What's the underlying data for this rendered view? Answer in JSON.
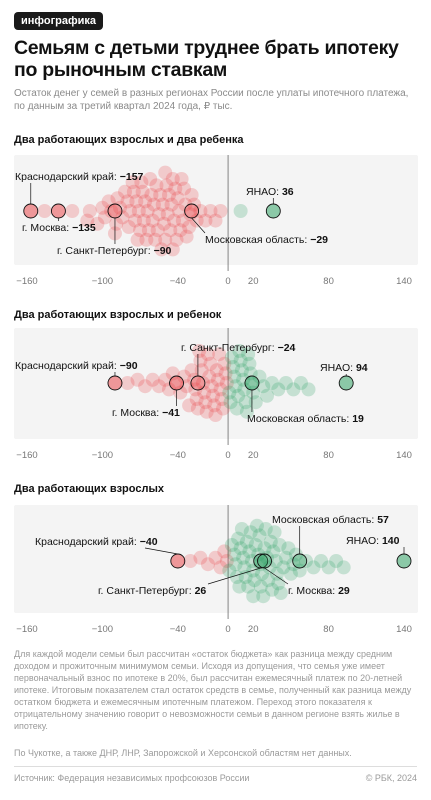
{
  "badge": "инфографика",
  "title": "Семьям с детьми труднее брать ипотеку по рыночным ставкам",
  "subtitle": "Остаток денег у семей в разных регионах России после уплаты ипотечного платежа, по данным за третий квартал 2024 года, ₽ тыс.",
  "note": "Для каждой модели семьи был рассчитан «остаток бюджета» как разница между средним доходом и прожиточным минимумом семьи. Исходя из допущения, что семья уже имеет первоначальный взнос по ипотеке в 20%, был рассчитан ежемесячный платеж по 20-летней ипотеке. Итоговым показателем стал остаток средств в семье, полученный как разница между остатком бюджета и ежемесячным ипотечным платежом. Переход этого показателя к отрицательному значению говорит о невозможности семьи в данном регионе взять жилье в ипотеку.",
  "note2": "По Чукотке, а также ДНР, ЛНР, Запорожской и Херсонской областям нет данных.",
  "source": "Источник: Федерация независимых профсоюзов России",
  "copyright": "© РБК, 2024",
  "colors": {
    "negative": "#e8383d",
    "positive": "#1f9a5a"
  },
  "chart_data": [
    {
      "type": "scatter",
      "title": "Два работающих взрослых и два ребенка",
      "xlim": [
        -160,
        140
      ],
      "ticks": [
        "−160",
        "−100",
        "−40",
        "0",
        "20",
        "80",
        "140"
      ],
      "tick_values": [
        -160,
        -100,
        -40,
        0,
        20,
        80,
        140
      ],
      "values": [
        -157,
        -146,
        -135,
        -124,
        -112,
        -110,
        -104,
        -100,
        -98,
        -95,
        -93,
        -90,
        -89,
        -88,
        -86,
        -84,
        -82,
        -80,
        -79,
        -78,
        -76,
        -75,
        -74,
        -73,
        -72,
        -71,
        -70,
        -69,
        -68,
        -67,
        -66,
        -65,
        -64,
        -63,
        -62,
        -61,
        -60,
        -59,
        -58,
        -57,
        -56,
        -55,
        -54,
        -53,
        -52,
        -51,
        -50,
        -50,
        -49,
        -48,
        -47,
        -46,
        -45,
        -44,
        -44,
        -43,
        -42,
        -41,
        -40,
        -39,
        -38,
        -37,
        -36,
        -35,
        -34,
        -33,
        -31,
        -30,
        -29,
        -27,
        -25,
        -22,
        -18,
        -14,
        -10,
        -6,
        10,
        36
      ],
      "labels": [
        {
          "name": "Краснодарский край:",
          "value": "−157"
        },
        {
          "name": "г. Москва:",
          "value": "−135"
        },
        {
          "name": "г. Санкт-Петербург:",
          "value": "−90"
        },
        {
          "name": "Московская область:",
          "value": "−29"
        },
        {
          "name": "ЯНАО:",
          "value": "36"
        }
      ]
    },
    {
      "type": "scatter",
      "title": "Два работающих взрослых и ребенок",
      "xlim": [
        -160,
        140
      ],
      "ticks": [
        "−160",
        "−100",
        "−40",
        "0",
        "20",
        "80",
        "140"
      ],
      "tick_values": [
        -160,
        -100,
        -40,
        0,
        20,
        80,
        140
      ],
      "values": [
        -90,
        -80,
        -72,
        -66,
        -60,
        -55,
        -50,
        -47,
        -44,
        -41,
        -38,
        -35,
        -33,
        -31,
        -29,
        -27,
        -26,
        -25,
        -24,
        -23,
        -22,
        -21,
        -20,
        -19,
        -18,
        -17,
        -16,
        -15,
        -14,
        -13,
        -12,
        -11,
        -10,
        -9,
        -8,
        -7,
        -6,
        -5,
        -4,
        -3,
        -2,
        -1,
        1,
        2,
        3,
        4,
        5,
        6,
        7,
        8,
        9,
        10,
        11,
        12,
        13,
        14,
        15,
        16,
        17,
        18,
        19,
        20,
        22,
        25,
        28,
        31,
        35,
        40,
        46,
        52,
        58,
        64,
        94
      ],
      "labels": [
        {
          "name": "Краснодарский край:",
          "value": "−90"
        },
        {
          "name": "г. Санкт-Петербург:",
          "value": "−24"
        },
        {
          "name": "г. Москва:",
          "value": "−41"
        },
        {
          "name": "ЯНАО:",
          "value": "94"
        },
        {
          "name": "Московская область:",
          "value": "19"
        }
      ]
    },
    {
      "type": "scatter",
      "title": "Два работающих взрослых",
      "xlim": [
        -160,
        140
      ],
      "ticks": [
        "−160",
        "−100",
        "−40",
        "0",
        "20",
        "80",
        "140"
      ],
      "tick_values": [
        -160,
        -100,
        -40,
        0,
        20,
        80,
        140
      ],
      "values": [
        -40,
        -30,
        -22,
        -16,
        -10,
        -6,
        -3,
        -1,
        1,
        3,
        5,
        6,
        7,
        8,
        9,
        10,
        11,
        12,
        13,
        14,
        15,
        16,
        17,
        18,
        19,
        20,
        20,
        21,
        22,
        23,
        24,
        25,
        26,
        26,
        27,
        28,
        29,
        30,
        31,
        32,
        33,
        34,
        35,
        36,
        37,
        38,
        39,
        40,
        41,
        42,
        44,
        46,
        48,
        50,
        52,
        54,
        57,
        62,
        68,
        74,
        80,
        86,
        92,
        140
      ],
      "labels": [
        {
          "name": "Московская область:",
          "value": "57"
        },
        {
          "name": "ЯНАО:",
          "value": "140"
        },
        {
          "name": "Краснодарский край:",
          "value": "−40"
        },
        {
          "name": "г. Санкт-Петербург:",
          "value": "26"
        },
        {
          "name": "г. Москва:",
          "value": "29"
        }
      ]
    }
  ]
}
